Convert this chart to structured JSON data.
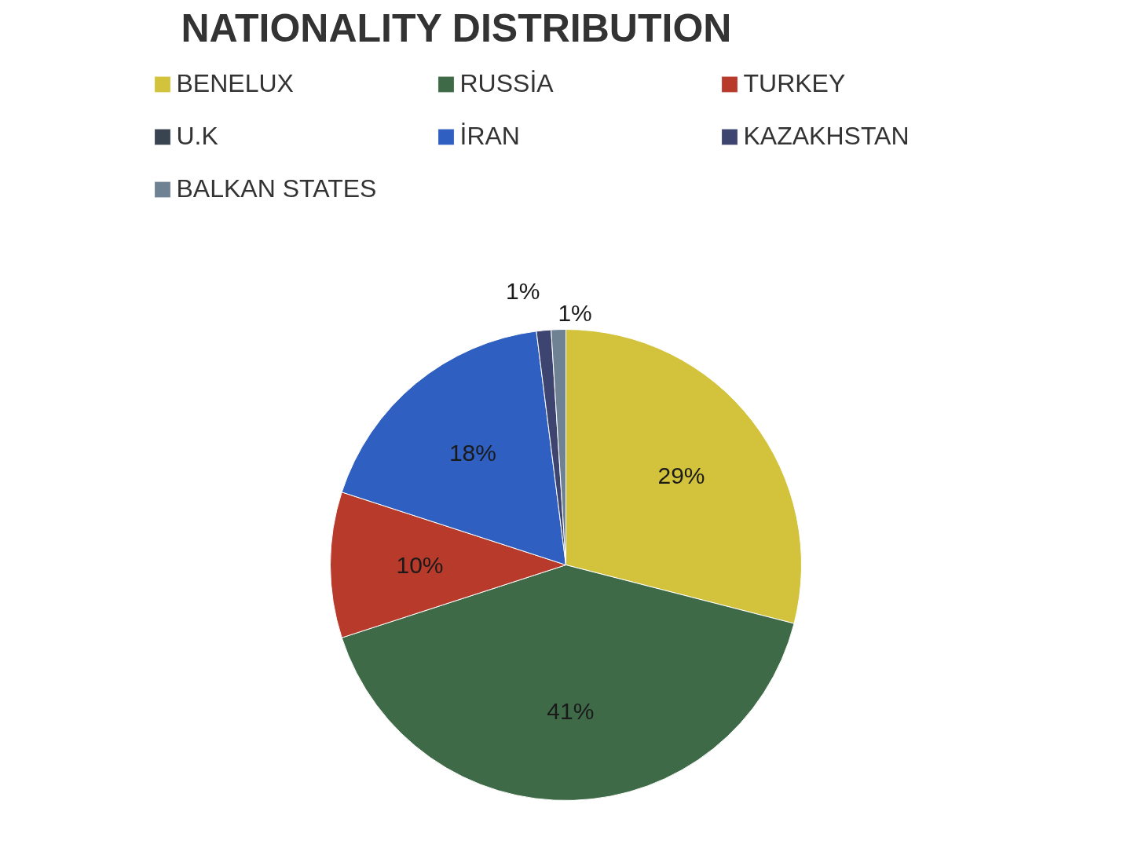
{
  "chart_data": {
    "type": "pie",
    "title": "NATIONALITY DISTRIBUTION",
    "categories": [
      "BENELUX",
      "RUSSİA",
      "TURKEY",
      "U.K",
      "İRAN",
      "KAZAKHSTAN",
      "BALKAN STATES"
    ],
    "values": [
      29,
      41,
      10,
      0,
      18,
      1,
      1
    ],
    "colors": [
      "#d2c23c",
      "#3f6a48",
      "#b83a2a",
      "#3a4450",
      "#2f5fc0",
      "#3d4470",
      "#6f8294"
    ],
    "value_labels": [
      "29%",
      "41%",
      "10%",
      null,
      "18%",
      "1%",
      "1%"
    ],
    "legend": "top"
  }
}
